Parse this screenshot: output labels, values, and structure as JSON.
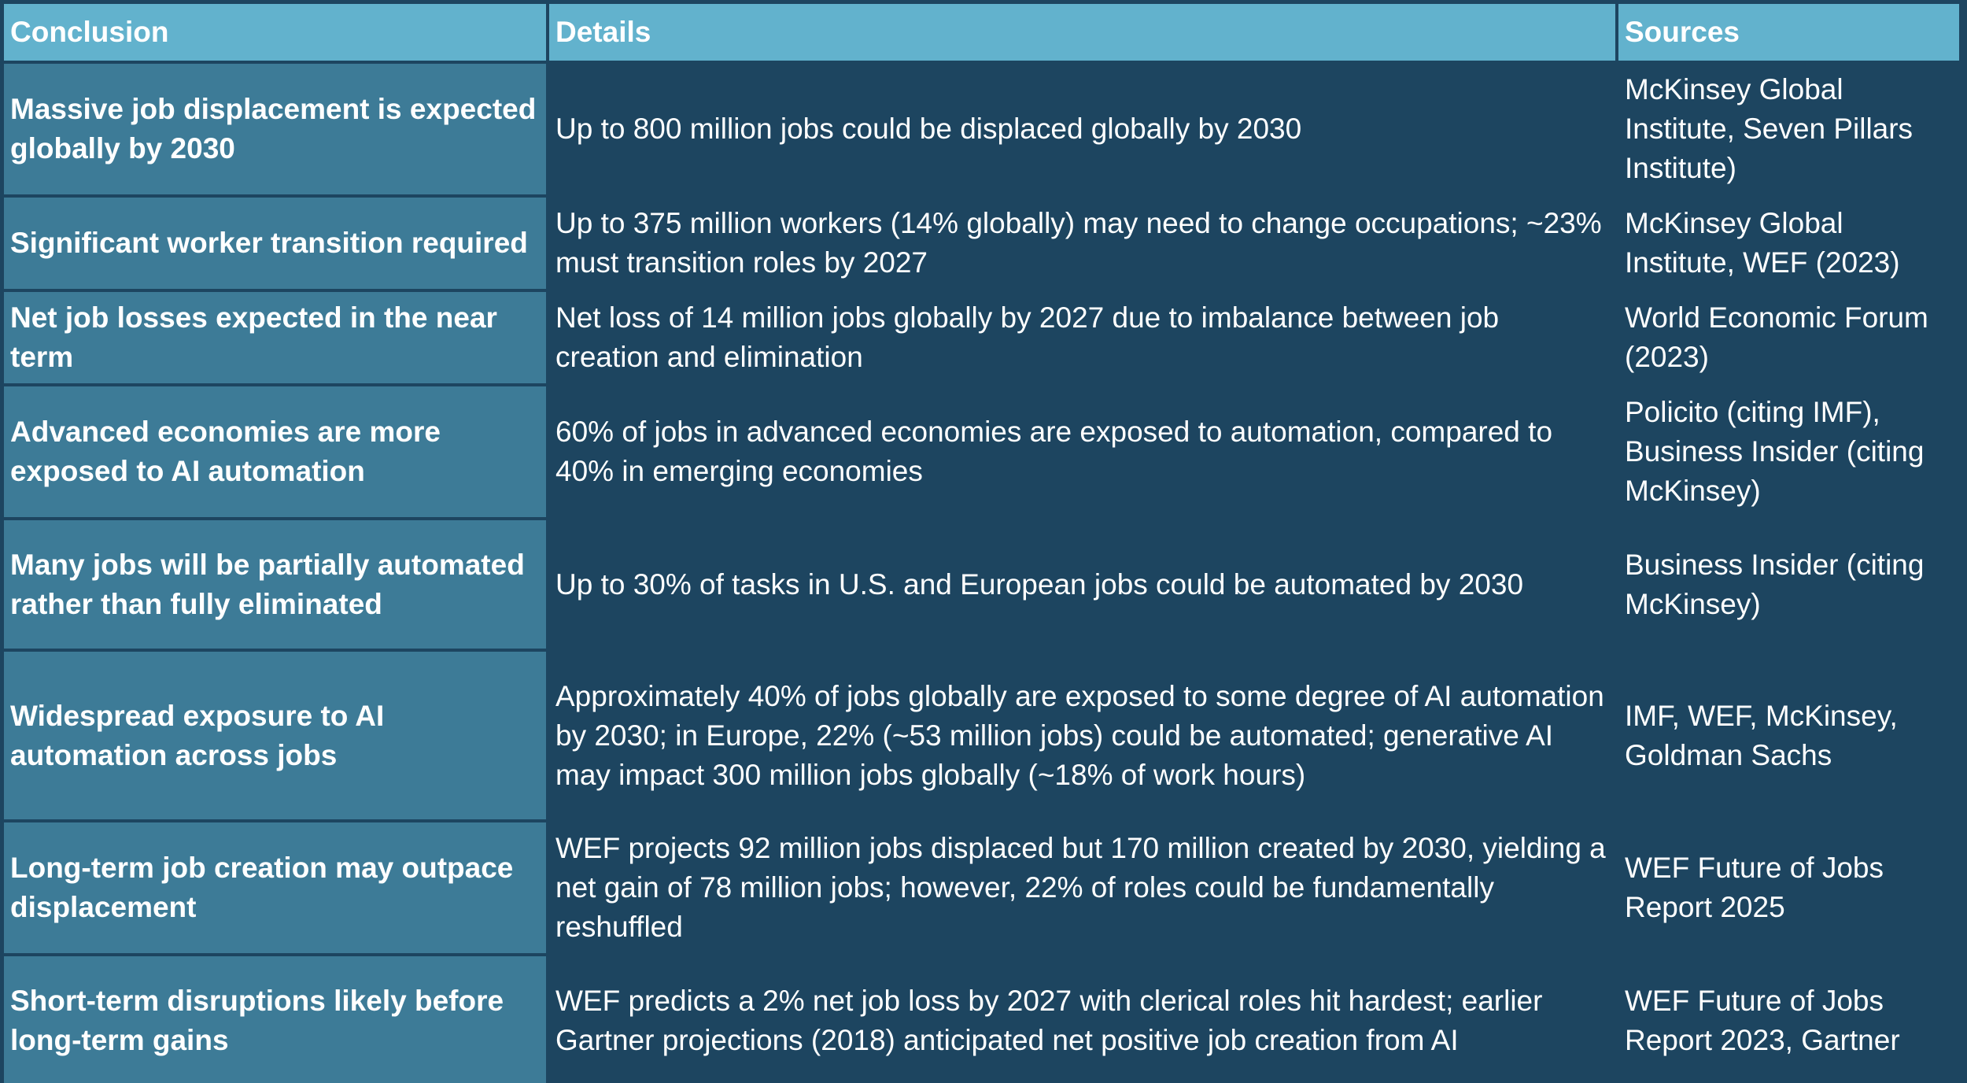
{
  "table": {
    "headers": {
      "conclusion": "Conclusion",
      "details": "Details",
      "sources": "Sources"
    },
    "rows": [
      {
        "conclusion": "Massive job displacement is expected globally by 2030",
        "details": "Up to 800 million jobs could be displaced globally by 2030",
        "sources": "McKinsey Global Institute, Seven Pillars Institute)"
      },
      {
        "conclusion": "Significant worker transition required",
        "details": "Up to 375 million workers (14% globally) may need to change occupations; ~23% must transition roles by 2027",
        "sources": "McKinsey Global Institute, WEF (2023)"
      },
      {
        "conclusion": "Net job losses expected in the near term",
        "details": "Net loss of 14 million jobs globally by 2027 due to imbalance between job creation and elimination",
        "sources": "World Economic Forum (2023)"
      },
      {
        "conclusion": "Advanced economies are more exposed to AI automation",
        "details": "60% of jobs in advanced economies are exposed to automation, compared to 40% in emerging economies",
        "sources": "Policito (citing IMF), Business Insider (citing McKinsey)"
      },
      {
        "conclusion": "Many jobs will be partially automated rather than fully eliminated",
        "details": "Up to 30% of tasks in U.S. and European jobs could be automated by 2030",
        "sources": "Business Insider (citing McKinsey)"
      },
      {
        "conclusion": "Widespread exposure to AI automation across jobs",
        "details": "Approximately 40% of jobs globally are exposed to some degree of AI automation by 2030; in Europe, 22% (~53 million jobs) could be automated; generative AI may impact 300 million jobs globally (~18% of work hours)",
        "sources": "IMF, WEF, McKinsey, Goldman Sachs"
      },
      {
        "conclusion": "Long-term job creation may outpace displacement",
        "details": "WEF projects 92 million jobs displaced but 170 million created by 2030, yielding a net gain of 78 million jobs; however, 22% of roles could be fundamentally reshuffled",
        "sources": "WEF Future of Jobs Report 2025"
      },
      {
        "conclusion": "Short-term disruptions likely before long-term gains",
        "details": "WEF predicts a 2% net job loss by 2027 with clerical roles hit hardest; earlier Gartner projections (2018) anticipated net positive job creation from AI",
        "sources": "WEF Future of Jobs Report 2023, Gartner"
      }
    ]
  },
  "colors": {
    "background": "#1d4560",
    "header": "#62b2cd",
    "conclusion_cell": "#3d7b97",
    "text": "#ffffff"
  }
}
